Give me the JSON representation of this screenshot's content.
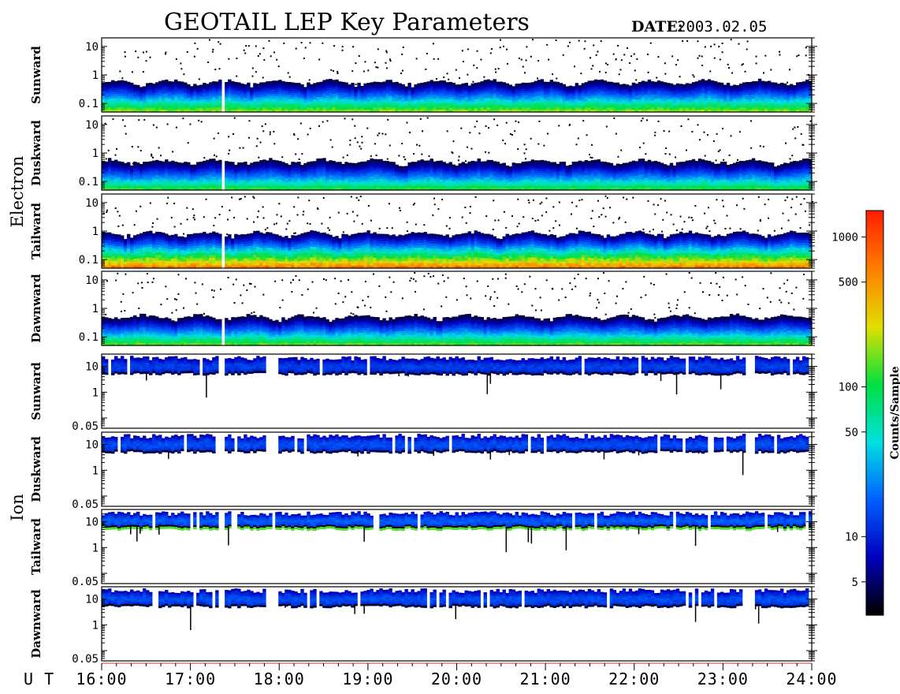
{
  "title": "GEOTAIL LEP Key Parameters",
  "date": {
    "label": "DATE:",
    "value": "2003.02.05"
  },
  "chart_data": {
    "type": "heatmap",
    "x_label": "U T",
    "x_ticks": [
      "16:00",
      "17:00",
      "18:00",
      "19:00",
      "20:00",
      "21:00",
      "22:00",
      "23:00",
      "24:00"
    ],
    "x_range": [
      16,
      24
    ],
    "colorbar": {
      "label": "Counts/Sample",
      "scale": "log",
      "range": [
        3,
        1500
      ],
      "ticks": [
        "5",
        "10",
        "50",
        "100",
        "500",
        "1000"
      ],
      "tick_values": [
        5,
        10,
        50,
        100,
        500,
        1000
      ],
      "colors": [
        "#000000",
        "#0000c0",
        "#0060ff",
        "#00e0e0",
        "#00e040",
        "#e0e000",
        "#ff8000",
        "#ff2000"
      ]
    },
    "groups": [
      {
        "name": "Electron",
        "y_scale": "log",
        "y_range": [
          0.05,
          20
        ],
        "y_ticks": [
          "10",
          "1",
          "0.1"
        ],
        "y_tick_values": [
          10,
          1,
          0.1
        ],
        "panels": [
          {
            "name": "Sunward",
            "level": 1.0,
            "top_level": 0.55,
            "gaps": [
              [
                17.35,
                17.4
              ]
            ]
          },
          {
            "name": "Duskward",
            "level": 0.9,
            "top_level": 0.5,
            "gaps": [
              [
                17.35,
                17.4
              ]
            ]
          },
          {
            "name": "Tailward",
            "level": 1.3,
            "top_level": 0.8,
            "gaps": [
              [
                17.35,
                17.4
              ]
            ]
          },
          {
            "name": "Dawnward",
            "level": 0.95,
            "top_level": 0.5,
            "gaps": [
              [
                17.35,
                17.4
              ]
            ]
          }
        ]
      },
      {
        "name": "Ion",
        "y_scale": "log",
        "y_range": [
          0.04,
          30
        ],
        "y_ticks": [
          "10",
          "1",
          "0.05"
        ],
        "y_tick_values": [
          10,
          1,
          0.05
        ],
        "panels": [
          {
            "name": "Sunward",
            "level": 0.55,
            "band_low": 5,
            "gaps": [
              [
                17.33,
                17.4
              ],
              [
                17.85,
                18.0
              ],
              [
                23.25,
                23.35
              ],
              [
                23.95,
                24.0
              ]
            ]
          },
          {
            "name": "Duskward",
            "level": 0.6,
            "band_low": 5,
            "gaps": [
              [
                17.33,
                17.4
              ],
              [
                17.85,
                18.0
              ],
              [
                23.25,
                23.35
              ],
              [
                23.95,
                24.0
              ]
            ]
          },
          {
            "name": "Tailward",
            "level": 0.65,
            "band_low": 6,
            "low_band": true,
            "gaps": [
              [
                17.33,
                17.4
              ]
            ]
          },
          {
            "name": "Dawnward",
            "level": 0.6,
            "band_low": 5,
            "gaps": [
              [
                17.33,
                17.4
              ],
              [
                17.85,
                18.0
              ],
              [
                23.25,
                23.35
              ],
              [
                23.95,
                24.0
              ]
            ]
          }
        ]
      }
    ]
  }
}
